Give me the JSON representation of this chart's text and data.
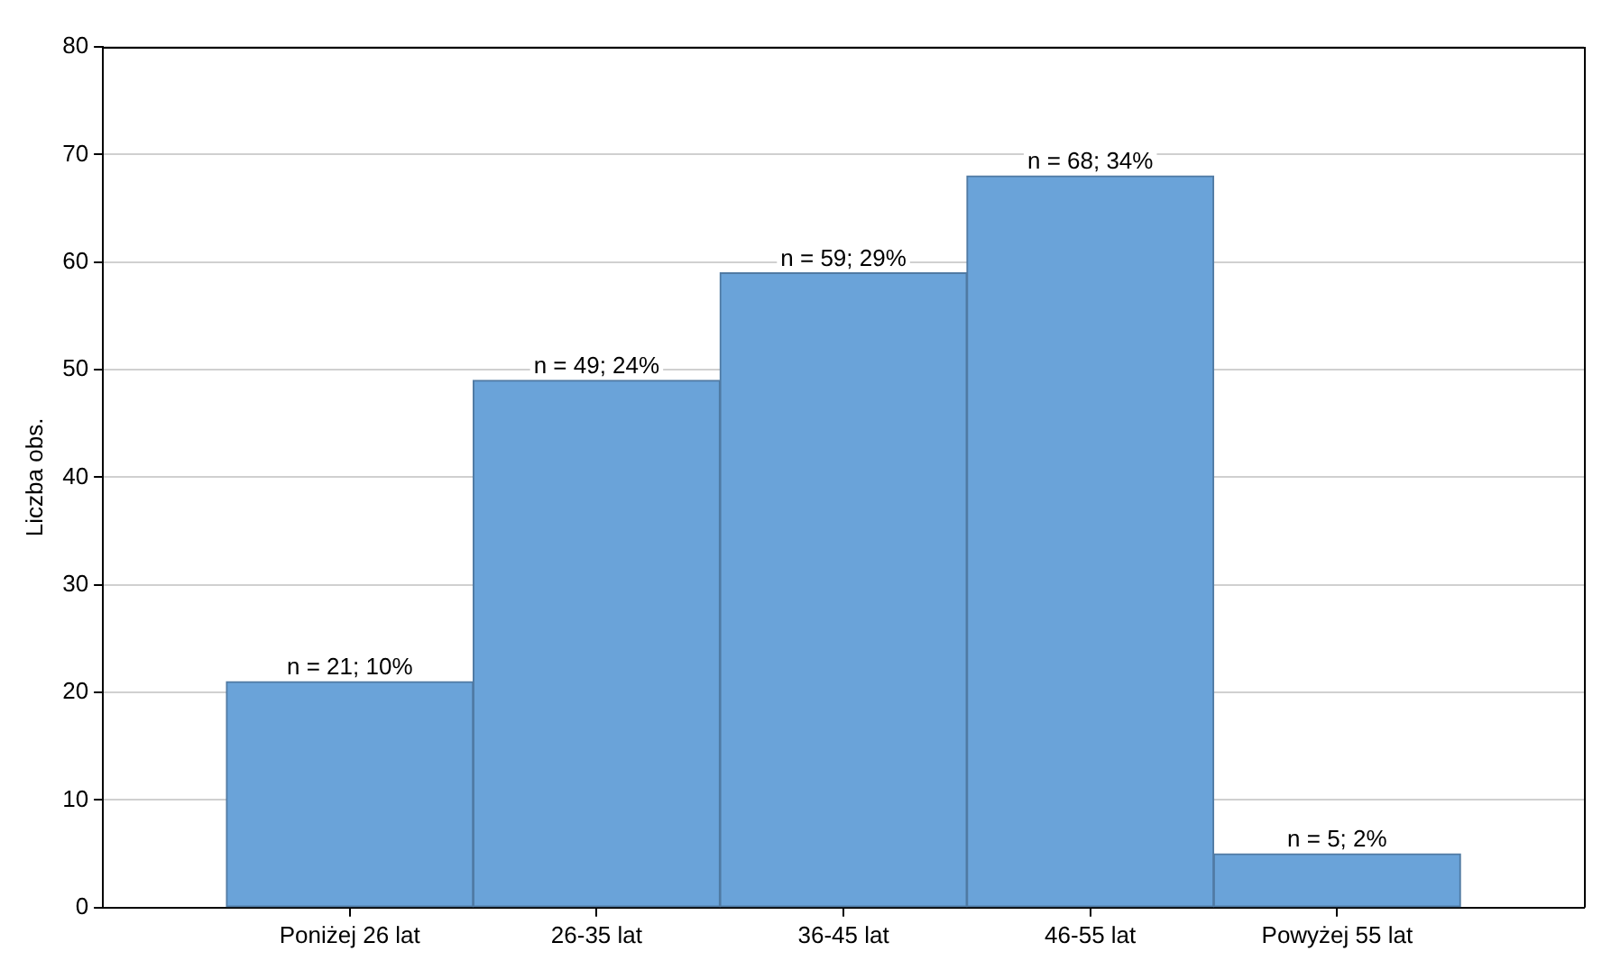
{
  "chart_data": {
    "type": "bar",
    "ylabel": "Liczba obs.",
    "categories": [
      "Poniżej 26 lat",
      "26-35 lat",
      "36-45 lat",
      "46-55 lat",
      "Powyżej 55 lat"
    ],
    "values": [
      21,
      49,
      59,
      68,
      5
    ],
    "value_labels": [
      "n = 21; 10%",
      "n = 49; 24%",
      "n = 59; 29%",
      "n = 68; 34%",
      "n = 5; 2%"
    ],
    "color": "#6aa3d9",
    "ylim": [
      0,
      80
    ],
    "yticks": [
      0,
      10,
      20,
      30,
      40,
      50,
      60,
      70,
      80
    ],
    "grid": "y",
    "legend": false
  }
}
